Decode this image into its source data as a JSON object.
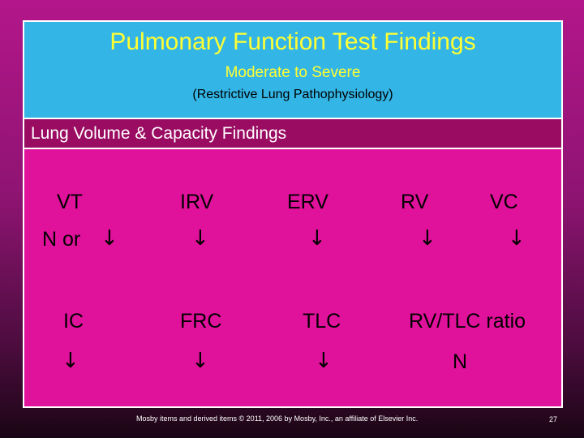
{
  "header": {
    "title": "Pulmonary Function Test Findings",
    "subtitle": "Moderate to Severe",
    "subtitle2": "(Restrictive Lung Pathophysiology)"
  },
  "section": {
    "label": "Lung Volume & Capacity Findings"
  },
  "row1": [
    {
      "name": "VT",
      "finding": "N or",
      "arrow": "↓"
    },
    {
      "name": "IRV",
      "arrow": "↓"
    },
    {
      "name": "ERV",
      "arrow": "↓"
    },
    {
      "name": "RV",
      "arrow": "↓"
    },
    {
      "name": "VC",
      "arrow": "↓"
    }
  ],
  "row2": [
    {
      "name": "IC",
      "arrow": "↓"
    },
    {
      "name": "FRC",
      "arrow": "↓"
    },
    {
      "name": "TLC",
      "arrow": "↓"
    },
    {
      "name": "RV/TLC ratio",
      "finding": "N"
    }
  ],
  "footer": {
    "copyright": "Mosby items and derived items © 2011, 2006 by Mosby, Inc., an affiliate of Elsevier Inc.",
    "page": "27"
  }
}
